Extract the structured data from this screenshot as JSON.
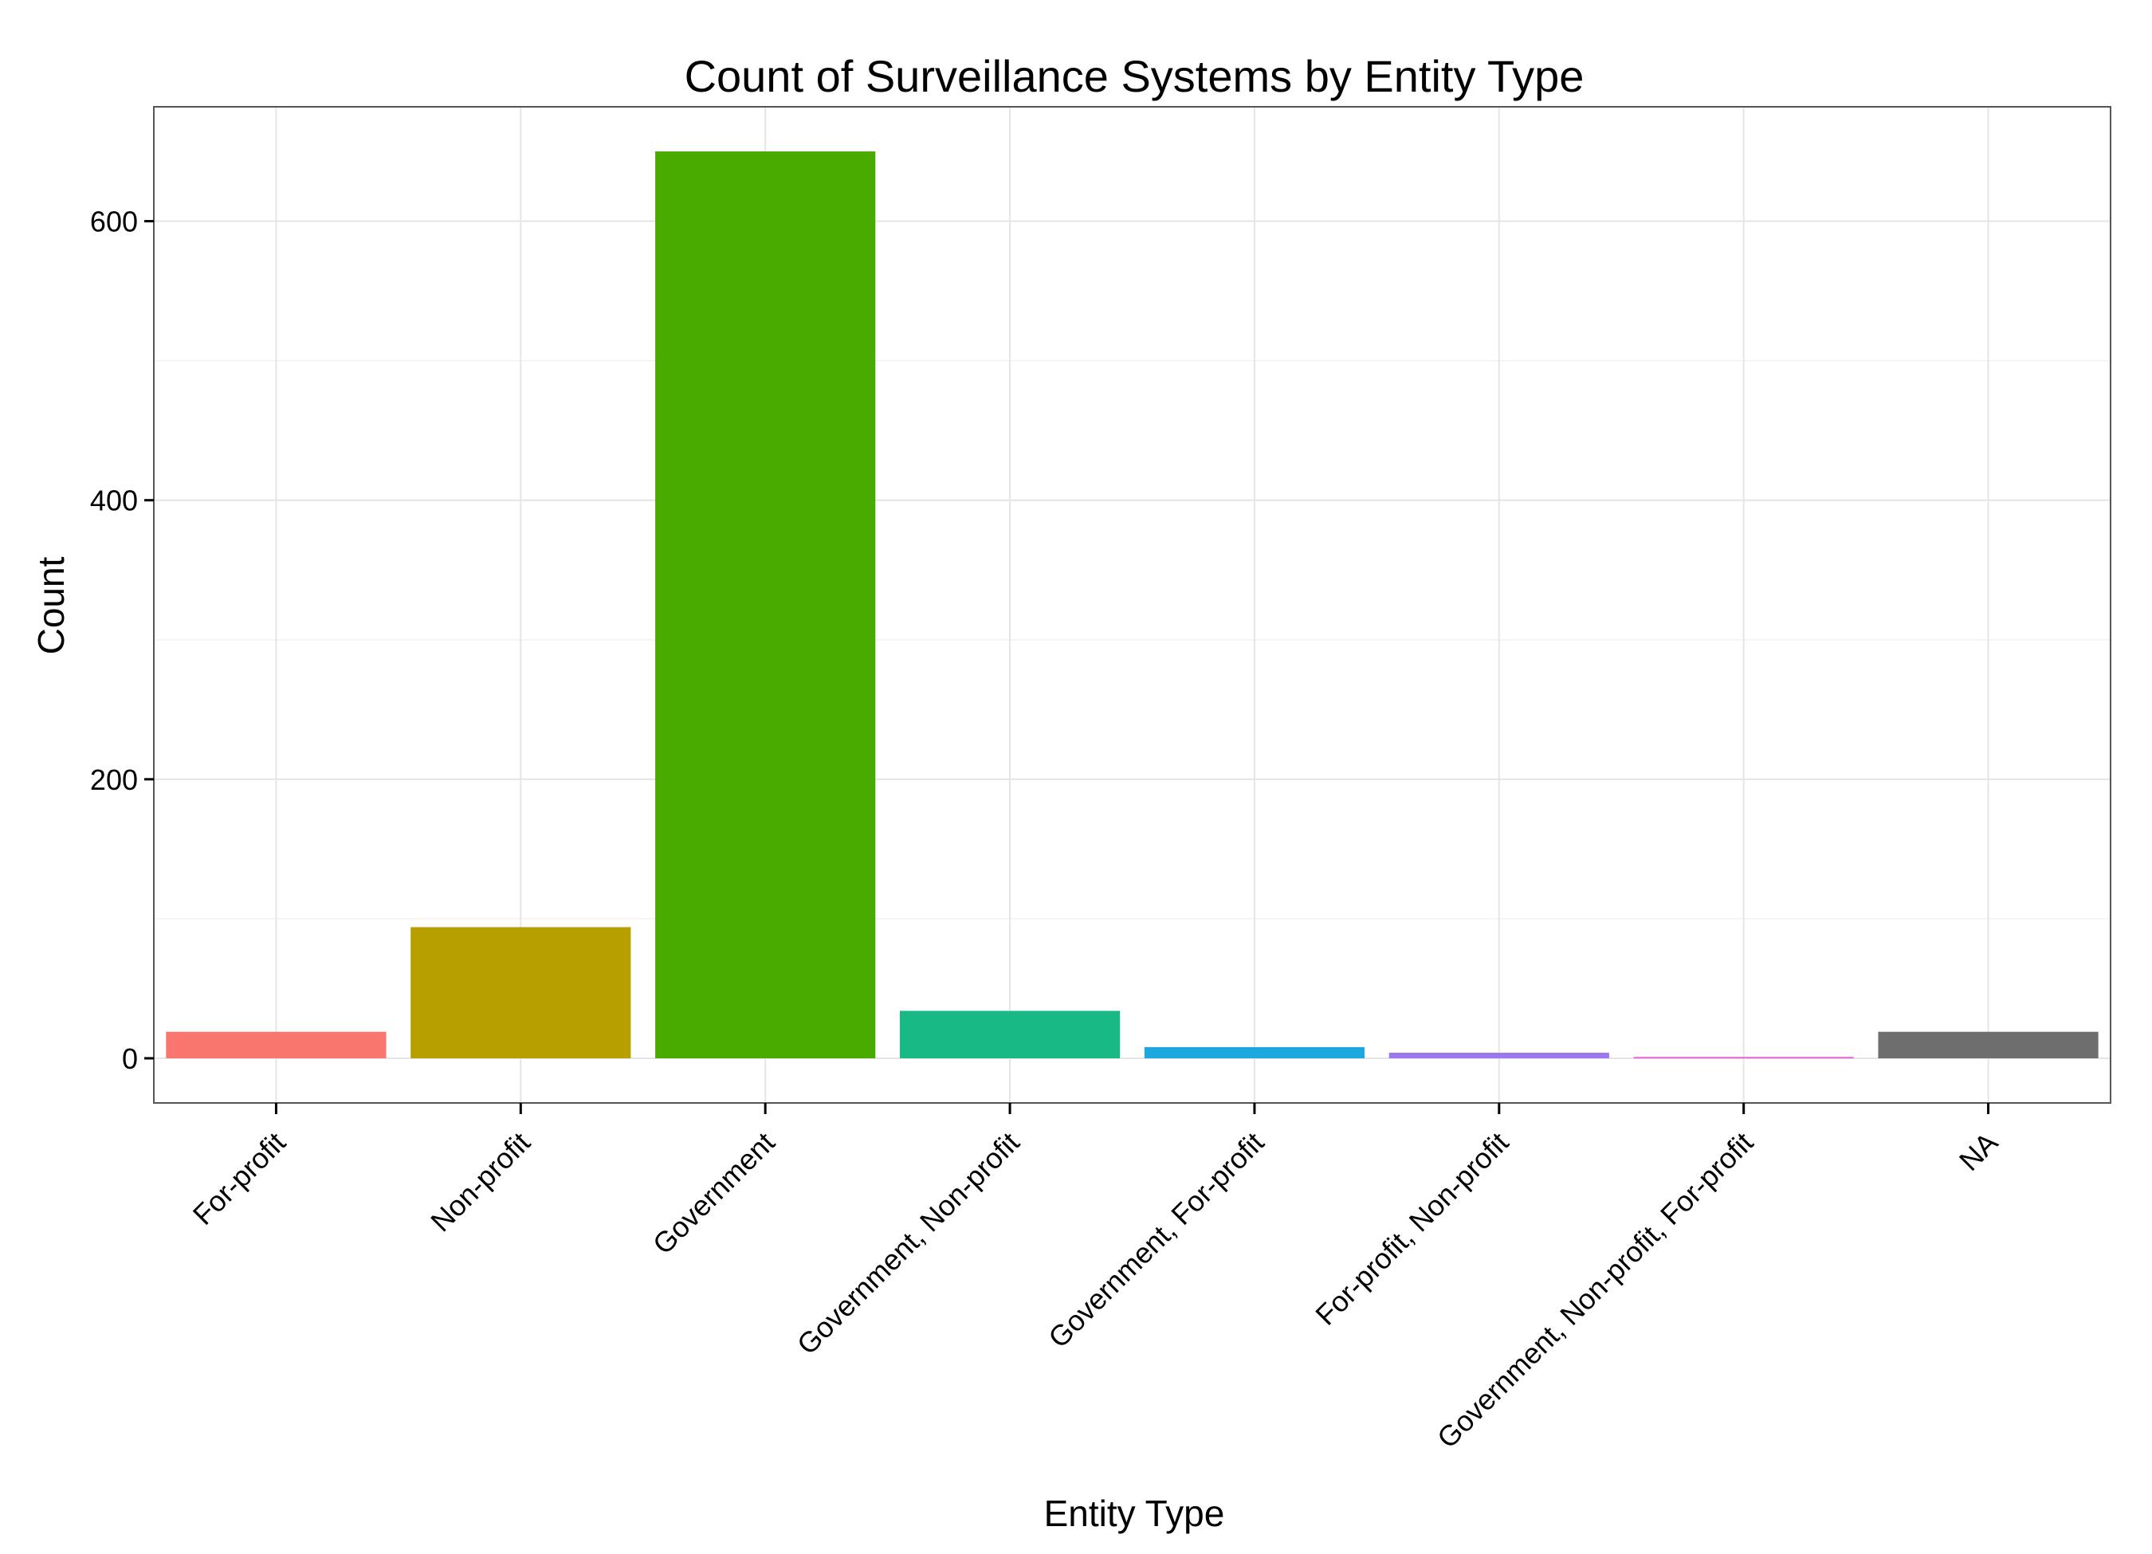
{
  "chart_data": {
    "type": "bar",
    "title": "Count of Surveillance Systems by Entity Type",
    "xlabel": "Entity Type",
    "ylabel": "Count",
    "categories": [
      "For-profit",
      "Non-profit",
      "Government",
      "Government, Non-profit",
      "Government, For-profit",
      "For-profit, Non-profit",
      "Government, Non-profit, For-profit",
      "NA"
    ],
    "values": [
      19,
      94,
      650,
      34,
      8,
      4,
      1,
      19
    ],
    "colors": [
      "#F8766D",
      "#B79F00",
      "#49AA00",
      "#19B985",
      "#1DA7E1",
      "#9B77F2",
      "#EA66DB",
      "#6E6E6E"
    ],
    "ylim": [
      -32,
      682
    ],
    "yticks": [
      0,
      200,
      400,
      600
    ],
    "yticks_minor": [
      100,
      300,
      500
    ],
    "grid": true,
    "legend": "none"
  }
}
